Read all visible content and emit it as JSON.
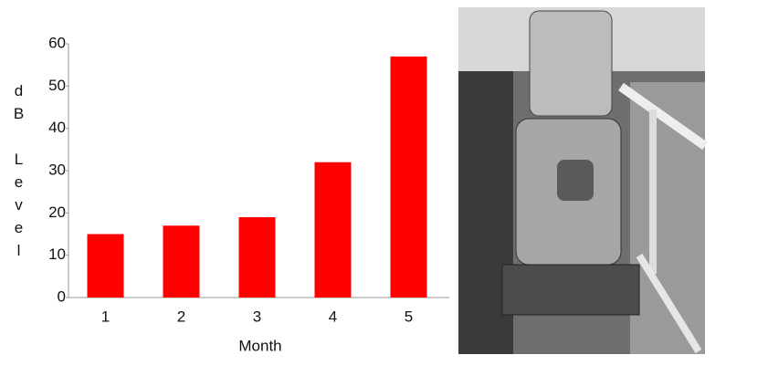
{
  "chart_data": {
    "type": "bar",
    "x_label": "Month",
    "y_label": "dB Level",
    "categories": [
      "1",
      "2",
      "3",
      "4",
      "5"
    ],
    "values": [
      15,
      17,
      19,
      32,
      57
    ],
    "color": "#ff0000",
    "ylim": [
      0,
      60
    ],
    "yticks": [
      0,
      10,
      20,
      30,
      40,
      50,
      60
    ]
  }
}
